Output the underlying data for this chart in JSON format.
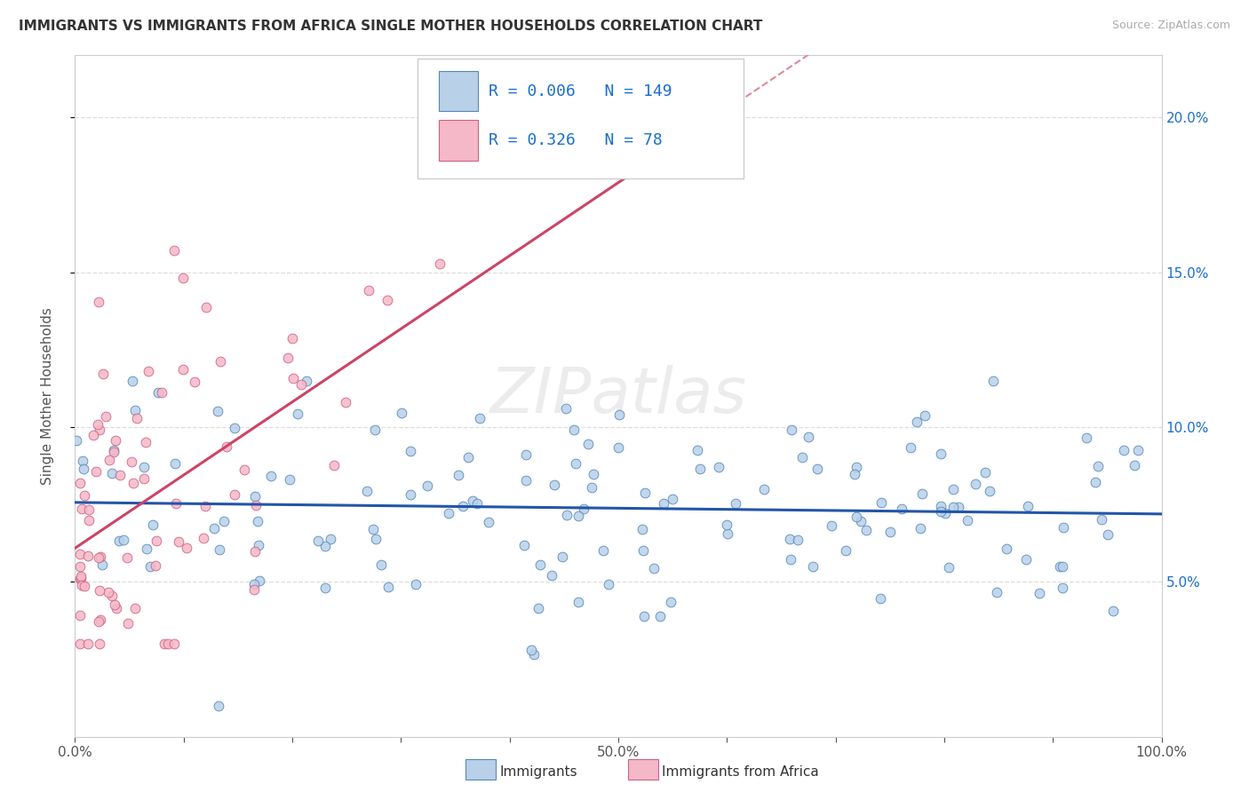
{
  "title": "IMMIGRANTS VS IMMIGRANTS FROM AFRICA SINGLE MOTHER HOUSEHOLDS CORRELATION CHART",
  "source": "Source: ZipAtlas.com",
  "ylabel": "Single Mother Households",
  "xlim": [
    0.0,
    1.0
  ],
  "ylim": [
    0.0,
    0.22
  ],
  "yticks": [
    0.05,
    0.1,
    0.15,
    0.2
  ],
  "ytick_labels": [
    "5.0%",
    "10.0%",
    "15.0%",
    "20.0%"
  ],
  "xtick_labels": [
    "0.0%",
    "",
    "",
    "",
    "",
    "50.0%",
    "",
    "",
    "",
    "",
    "100.0%"
  ],
  "blue_fill": "#b8d0e8",
  "blue_edge": "#5588bb",
  "pink_fill": "#f4b8c8",
  "pink_edge": "#d06080",
  "blue_trend_color": "#2255aa",
  "pink_trend_color": "#cc4466",
  "pink_dash_color": "#e08898",
  "grid_color": "#dddddd",
  "R_blue": 0.006,
  "N_blue": 149,
  "R_pink": 0.326,
  "N_pink": 78,
  "text_color": "#1a6fcc",
  "watermark": "ZIPatlas",
  "background_color": "#ffffff"
}
